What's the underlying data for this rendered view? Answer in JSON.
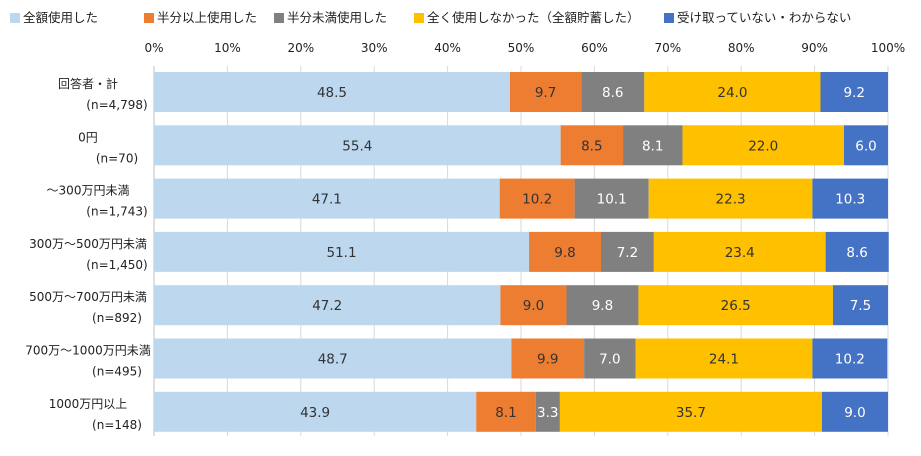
{
  "chart_data": {
    "type": "bar",
    "orientation": "horizontal",
    "stacked": "percent",
    "legend_position": "top",
    "grid": true,
    "xlim": [
      0,
      100
    ],
    "x_ticks": [
      "0%",
      "10%",
      "20%",
      "30%",
      "40%",
      "50%",
      "60%",
      "70%",
      "80%",
      "90%",
      "100%"
    ],
    "categories": [
      {
        "name": "回答者・計",
        "n": "(n=4,798)"
      },
      {
        "name": "0円",
        "n": "(n=70)"
      },
      {
        "name": "～300万円未満",
        "n": "(n=1,743)"
      },
      {
        "name": "300万～500万円未満",
        "n": "(n=1,450)"
      },
      {
        "name": "500万～700万円未満",
        "n": "(n=892)"
      },
      {
        "name": "700万～1000万円未満",
        "n": "(n=495)"
      },
      {
        "name": "1000万円以上",
        "n": "(n=148)"
      }
    ],
    "series": [
      {
        "name": "全額使用した",
        "color": "#bdd7ee",
        "label_color": "#333333",
        "values": [
          48.5,
          55.4,
          47.1,
          51.1,
          47.2,
          48.7,
          43.9
        ]
      },
      {
        "name": "半分以上使用した",
        "color": "#ed7d31",
        "label_color": "#333333",
        "values": [
          9.7,
          8.5,
          10.2,
          9.8,
          9.0,
          9.9,
          8.1
        ]
      },
      {
        "name": "半分未満使用した",
        "color": "#808080",
        "label_color": "#ffffff",
        "values": [
          8.6,
          8.1,
          10.1,
          7.2,
          9.8,
          7.0,
          3.3
        ]
      },
      {
        "name": "全く使用しなかった（全額貯蓄した）",
        "color": "#ffc000",
        "label_color": "#333333",
        "values": [
          24.0,
          22.0,
          22.3,
          23.4,
          26.5,
          24.1,
          35.7
        ]
      },
      {
        "name": "受け取っていない・わからない",
        "color": "#4472c4",
        "label_color": "#ffffff",
        "values": [
          9.2,
          6.0,
          10.3,
          8.6,
          7.5,
          10.2,
          9.0
        ]
      }
    ]
  }
}
